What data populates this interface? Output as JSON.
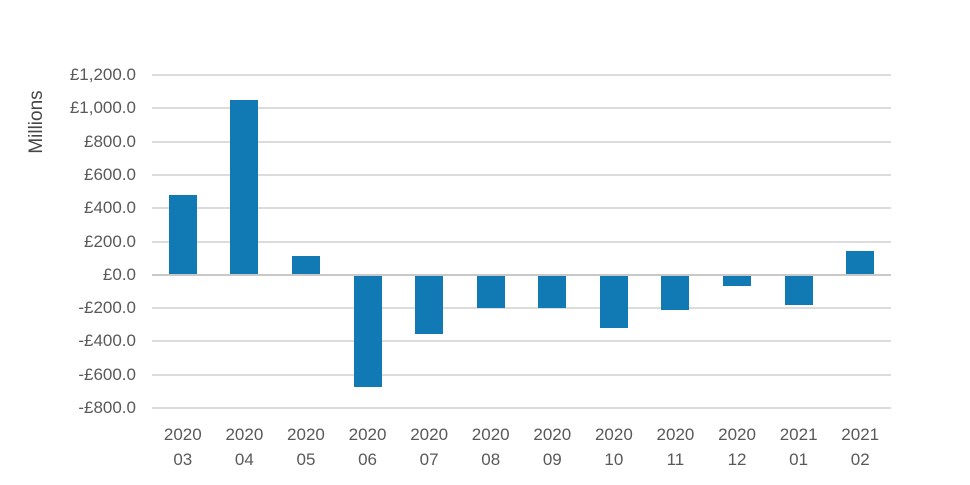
{
  "chart_data": {
    "type": "bar",
    "title": "",
    "xlabel": "",
    "ylabel": "Millions",
    "currency": "GBP",
    "ylim": [
      -800,
      1200
    ],
    "grid": true,
    "legend": false,
    "categories": [
      {
        "year": "2020",
        "month": "03"
      },
      {
        "year": "2020",
        "month": "04"
      },
      {
        "year": "2020",
        "month": "05"
      },
      {
        "year": "2020",
        "month": "06"
      },
      {
        "year": "2020",
        "month": "07"
      },
      {
        "year": "2020",
        "month": "08"
      },
      {
        "year": "2020",
        "month": "09"
      },
      {
        "year": "2020",
        "month": "10"
      },
      {
        "year": "2020",
        "month": "11"
      },
      {
        "year": "2020",
        "month": "12"
      },
      {
        "year": "2021",
        "month": "01"
      },
      {
        "year": "2021",
        "month": "02"
      }
    ],
    "values": [
      480,
      1050,
      110,
      -675,
      -355,
      -200,
      -200,
      -320,
      -210,
      -70,
      -180,
      140
    ],
    "y_ticks": [
      {
        "value": 1200,
        "label": "£1,200.0"
      },
      {
        "value": 1000,
        "label": "£1,000.0"
      },
      {
        "value": 800,
        "label": "£800.0"
      },
      {
        "value": 600,
        "label": "£600.0"
      },
      {
        "value": 400,
        "label": "£400.0"
      },
      {
        "value": 200,
        "label": "£200.0"
      },
      {
        "value": 0,
        "label": "£0.0"
      },
      {
        "value": -200,
        "label": "-£200.0"
      },
      {
        "value": -400,
        "label": "-£400.0"
      },
      {
        "value": -600,
        "label": "-£600.0"
      },
      {
        "value": -800,
        "label": "-£800.0"
      }
    ],
    "colors": {
      "bar": "#117ab4",
      "gridline": "#dcdcdc",
      "zero_axis": "#c8c8c8",
      "tick_text": "#595959",
      "axis_title_text": "#474747",
      "background": "#ffffff"
    }
  }
}
